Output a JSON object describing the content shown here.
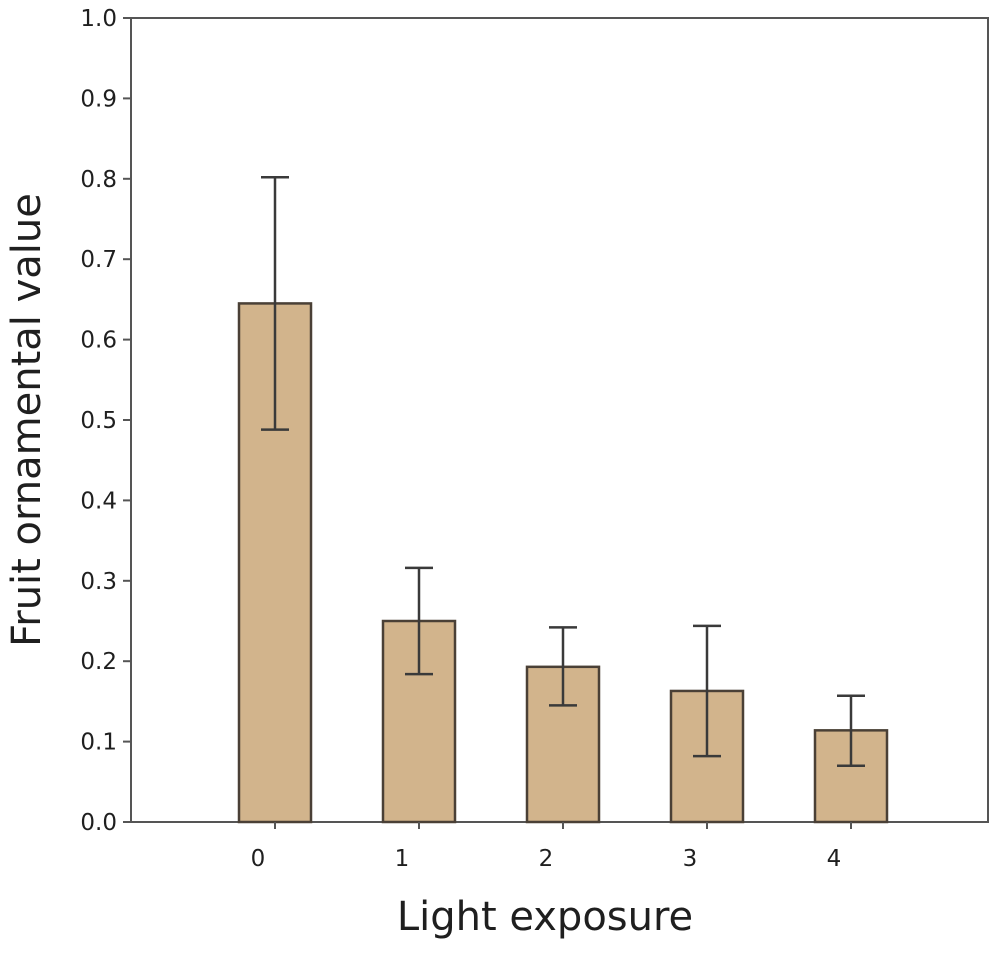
{
  "chart_data": {
    "type": "bar",
    "title": "",
    "xlabel": "Light exposure",
    "ylabel": "Fruit ornamental value",
    "categories": [
      "0",
      "1",
      "2",
      "3",
      "4"
    ],
    "values": [
      0.645,
      0.25,
      0.193,
      0.163,
      0.114
    ],
    "error_low": [
      0.488,
      0.184,
      0.145,
      0.082,
      0.07
    ],
    "error_high": [
      0.802,
      0.316,
      0.242,
      0.244,
      0.157
    ],
    "ylim": [
      0.0,
      1.0
    ],
    "yticks": [
      "0.0",
      "0.1",
      "0.2",
      "0.3",
      "0.4",
      "0.5",
      "0.6",
      "0.7",
      "0.8",
      "0.9",
      "1.0"
    ],
    "grid": false,
    "legend": "none",
    "colors": {
      "bar_fill": "#d2b48c",
      "bar_stroke": "#4a4036",
      "error_bar": "#3a3a3a",
      "axis": "#555555"
    }
  }
}
